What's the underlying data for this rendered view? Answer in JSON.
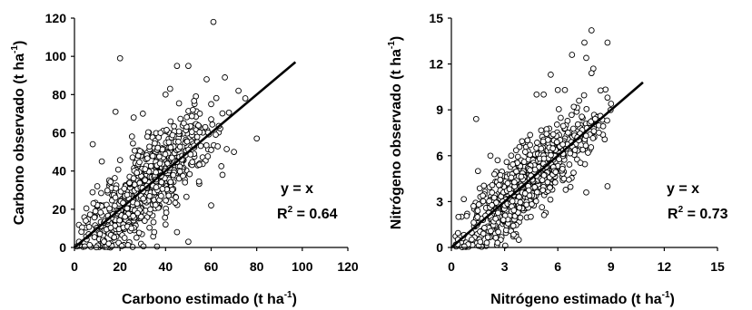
{
  "chart_data": [
    {
      "type": "scatter",
      "xlabel": {
        "prefix": "Carbono estimado (t ha",
        "exp": "-1",
        "suffix": ")"
      },
      "ylabel": {
        "prefix": "Carbono observado (t ha",
        "exp": "-1",
        "suffix": ")"
      },
      "xlim": [
        0,
        120
      ],
      "ylim": [
        0,
        120
      ],
      "xticks": [
        "0",
        "20",
        "40",
        "60",
        "80",
        "100",
        "120"
      ],
      "yticks": [
        "0",
        "20",
        "40",
        "60",
        "80",
        "100",
        "120"
      ],
      "equation": "y = x",
      "r2": {
        "label": "R",
        "exp": "2",
        "value": " = 0.64"
      },
      "fit_line": {
        "x": [
          0,
          97
        ],
        "y": [
          0,
          97
        ]
      },
      "series": [
        {
          "marker": "open-circle",
          "generator": {
            "seed": 11,
            "n": 700,
            "x_mean": 30,
            "x_sd": 15,
            "x_min": 1,
            "x_max": 74,
            "slope": 1.0,
            "noise_sd": 11,
            "y_min": 0,
            "y_max": 98
          },
          "points": [
            [
              61,
              118
            ],
            [
              20,
              99
            ],
            [
              18,
              71
            ],
            [
              8,
              54
            ],
            [
              12,
              45
            ],
            [
              45,
              95
            ],
            [
              50,
              95
            ],
            [
              58,
              88
            ],
            [
              66,
              89
            ],
            [
              72,
              82
            ],
            [
              75,
              78
            ],
            [
              80,
              57
            ],
            [
              60,
              75
            ],
            [
              40,
              80
            ],
            [
              42,
              83
            ],
            [
              26,
              68
            ],
            [
              30,
              70
            ],
            [
              10,
              32
            ],
            [
              5,
              14
            ],
            [
              2,
              3
            ],
            [
              50,
              3
            ],
            [
              45,
              8
            ],
            [
              40,
              12
            ],
            [
              35,
              8
            ],
            [
              60,
              22
            ],
            [
              65,
              38
            ],
            [
              70,
              50
            ],
            [
              55,
              70
            ],
            [
              52,
              72
            ],
            [
              48,
              65
            ],
            [
              25,
              10
            ],
            [
              22,
              5
            ],
            [
              15,
              2
            ],
            [
              28,
              48
            ],
            [
              32,
              58
            ]
          ]
        }
      ]
    },
    {
      "type": "scatter",
      "xlabel": {
        "prefix": "Nitrógeno estimado (t ha",
        "exp": "-1",
        "suffix": ")"
      },
      "ylabel": {
        "prefix": "Nitrógeno observado (t ha",
        "exp": "-1",
        "suffix": ")"
      },
      "xlim": [
        0,
        15
      ],
      "ylim": [
        0,
        15
      ],
      "xticks": [
        "0",
        "3",
        "6",
        "9",
        "12",
        "15"
      ],
      "yticks": [
        "0",
        "3",
        "6",
        "9",
        "12",
        "15"
      ],
      "equation": "y = x",
      "r2": {
        "label": "R",
        "exp": "2",
        "value": " = 0.73"
      },
      "fit_line": {
        "x": [
          0,
          10.8
        ],
        "y": [
          0,
          10.8
        ]
      },
      "series": [
        {
          "marker": "open-circle",
          "generator": {
            "seed": 29,
            "n": 750,
            "x_mean": 4.3,
            "x_sd": 1.9,
            "x_min": 0.1,
            "x_max": 9.0,
            "slope": 1.0,
            "noise_sd": 1.15,
            "y_min": 0,
            "y_max": 11.5
          },
          "points": [
            [
              7.9,
              14.2
            ],
            [
              7.5,
              13.4
            ],
            [
              8.8,
              13.4
            ],
            [
              6.8,
              12.6
            ],
            [
              7.6,
              12.4
            ],
            [
              8.0,
              11.7
            ],
            [
              7.9,
              11.4
            ],
            [
              5.6,
              11.3
            ],
            [
              6.0,
              10.3
            ],
            [
              6.4,
              10.3
            ],
            [
              8.8,
              9.8
            ],
            [
              1.4,
              8.4
            ],
            [
              4.8,
              10.0
            ],
            [
              5.2,
              10.0
            ],
            [
              7.2,
              9.6
            ],
            [
              8.4,
              8.6
            ],
            [
              8.8,
              4.0
            ],
            [
              7.6,
              3.6
            ],
            [
              2.6,
              0.3
            ],
            [
              3.8,
              0.5
            ],
            [
              9.0,
              9.4
            ],
            [
              6.9,
              9.2
            ],
            [
              1.5,
              5.0
            ],
            [
              2.2,
              6.0
            ],
            [
              0.4,
              2.0
            ]
          ]
        }
      ]
    }
  ]
}
